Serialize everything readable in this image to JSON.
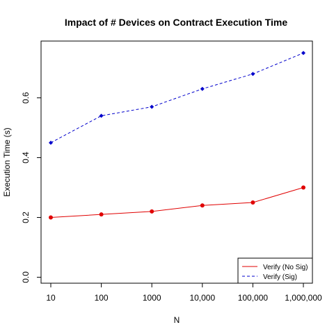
{
  "chart_data": {
    "type": "line",
    "title": "Impact of # Devices on Contract Execution Time",
    "xlabel": "N",
    "ylabel": "Execution Time (s)",
    "categories": [
      "10",
      "100",
      "1000",
      "10,000",
      "100,000",
      "1,000,000"
    ],
    "ylim": [
      -0.02,
      0.79
    ],
    "yticks": [
      0.0,
      0.2,
      0.4,
      0.6
    ],
    "ytick_labels": [
      "0.0",
      "0.2",
      "0.4",
      "0.6"
    ],
    "grid": false,
    "legend_position": "bottom-right",
    "series": [
      {
        "name": "Verify (No Sig)",
        "values": [
          0.2,
          0.21,
          0.22,
          0.24,
          0.25,
          0.3
        ],
        "color": "#e00000",
        "line_style": "solid",
        "marker": "circle"
      },
      {
        "name": "Verify (Sig)",
        "values": [
          0.45,
          0.54,
          0.57,
          0.63,
          0.68,
          0.75
        ],
        "color": "#0000cc",
        "line_style": "dashed",
        "marker": "diamond"
      }
    ]
  }
}
